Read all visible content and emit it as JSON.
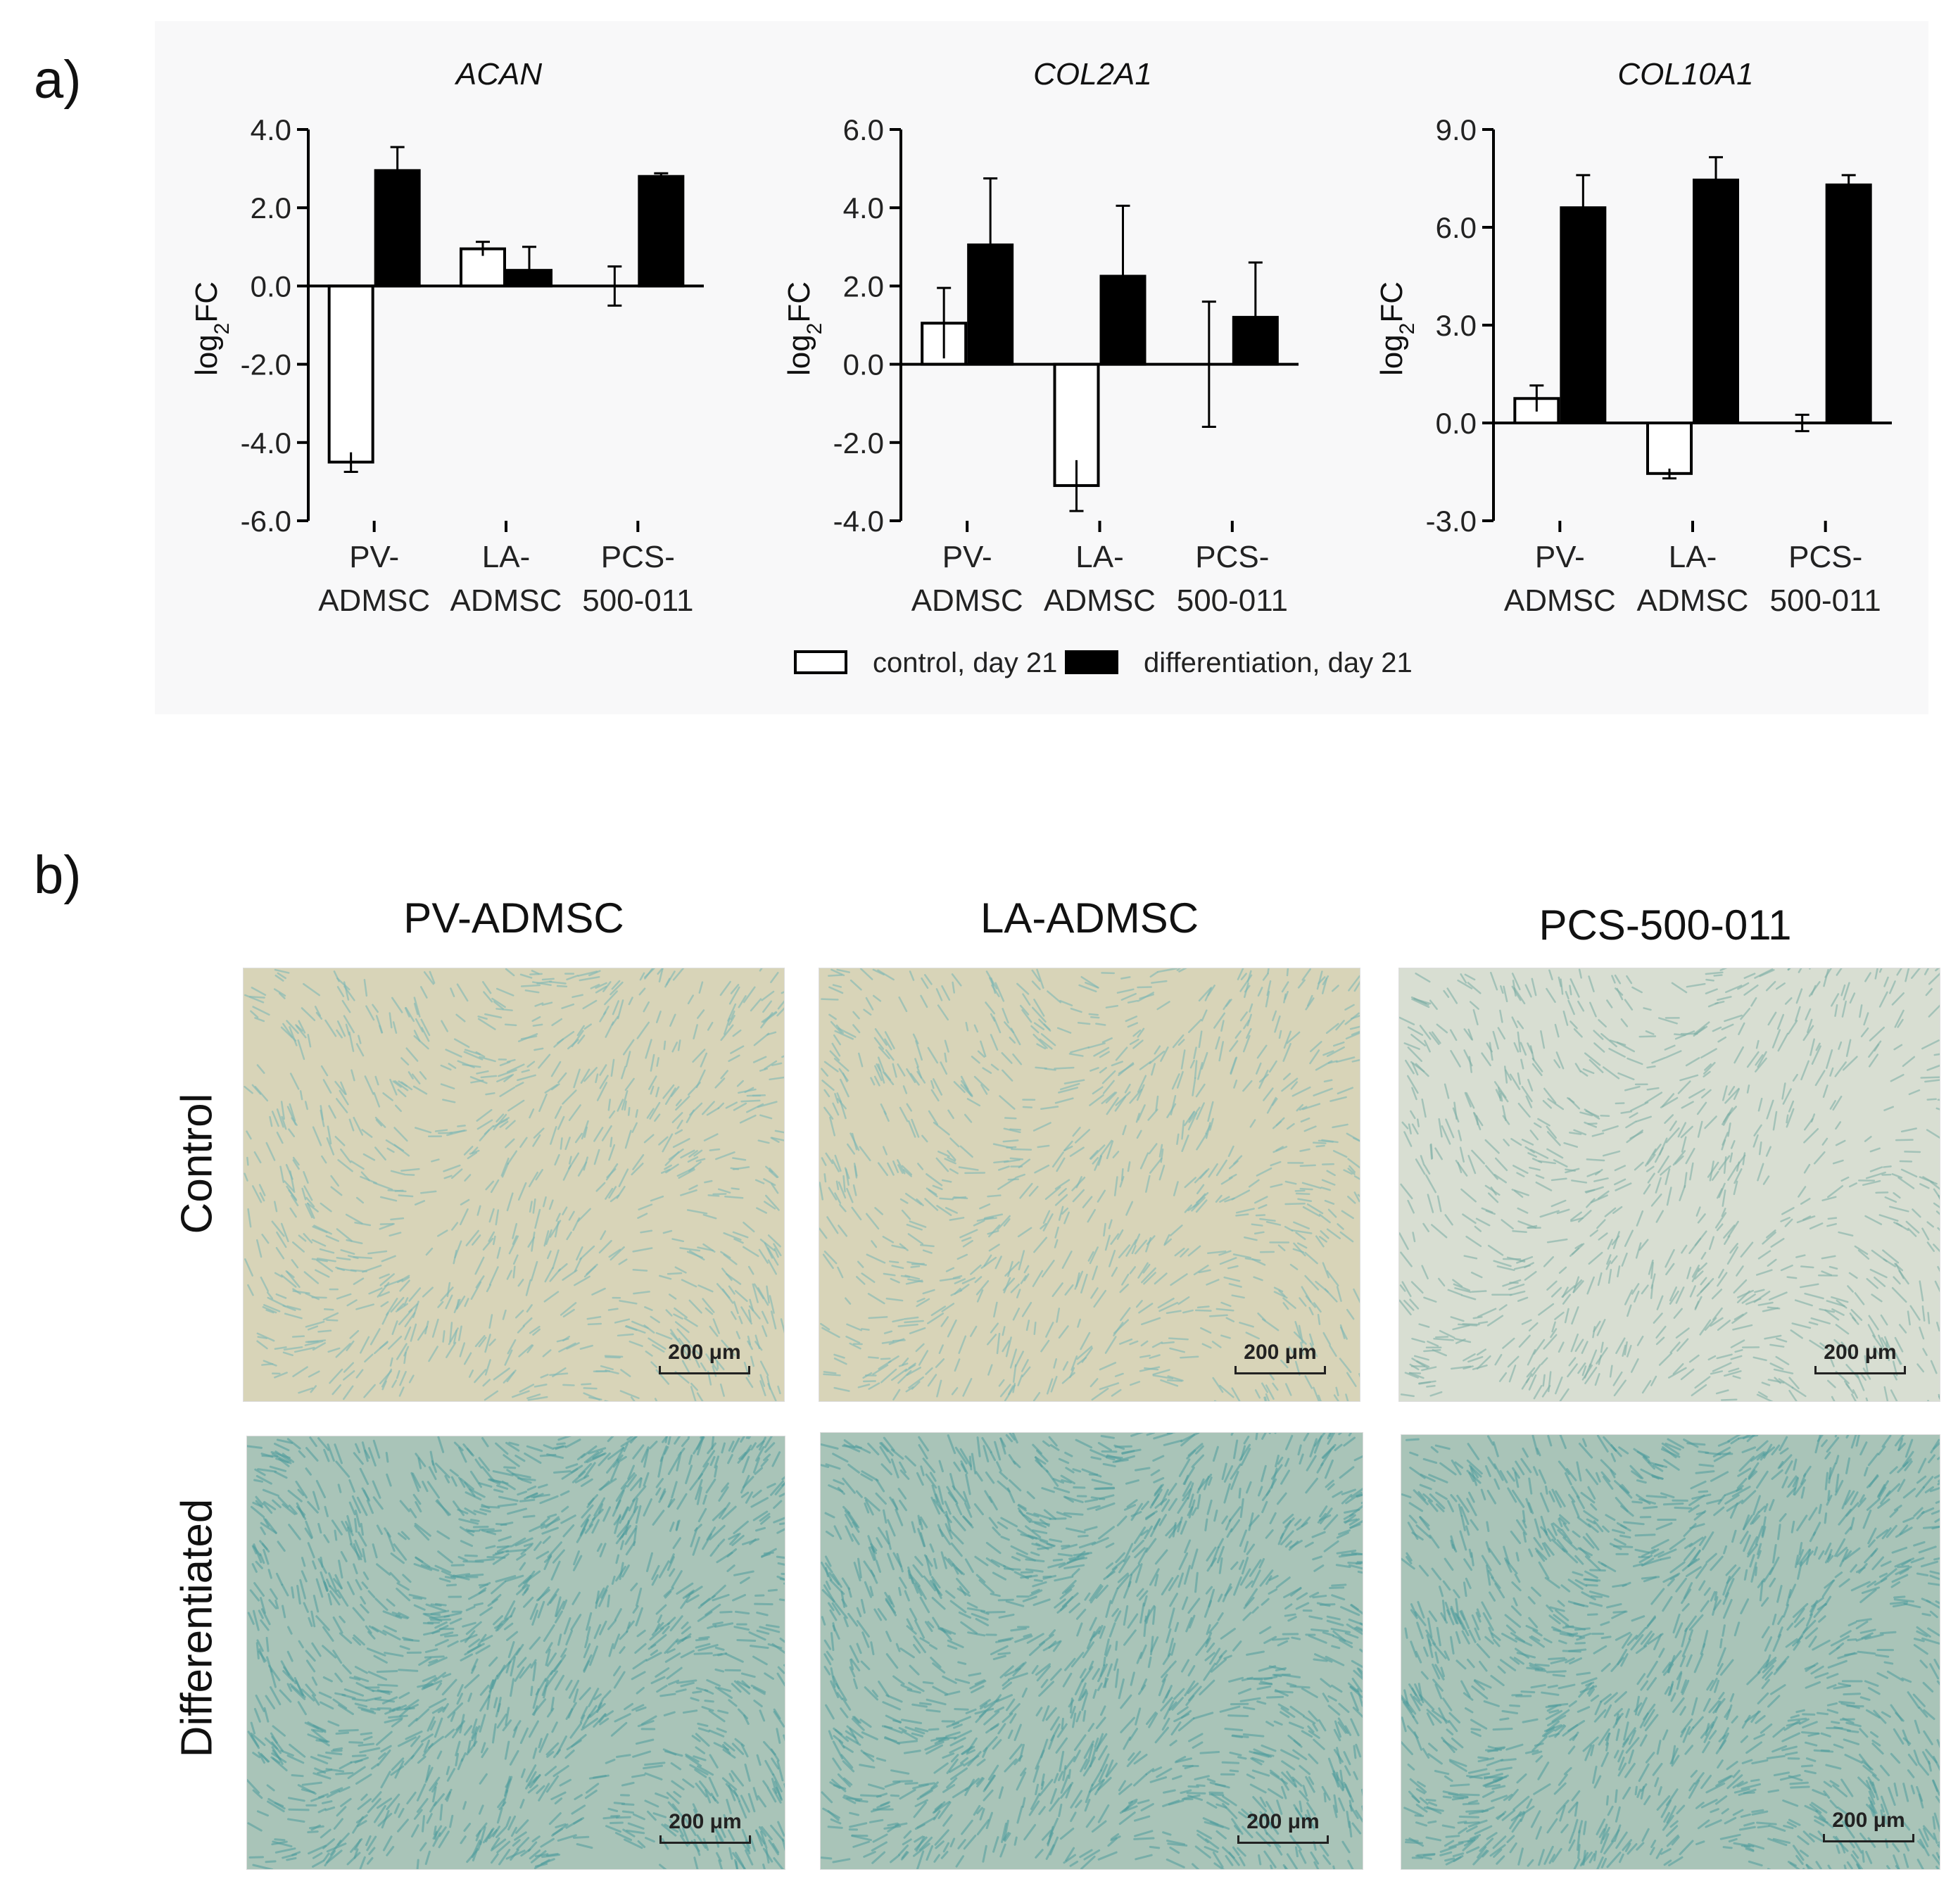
{
  "panel_a_label": "a)",
  "panel_b_label": "b)",
  "legend": [
    {
      "label": "control, day 21",
      "fill": "#ffffff"
    },
    {
      "label": "differentiation, day 21",
      "fill": "#000000"
    }
  ],
  "chart_data": [
    {
      "type": "bar",
      "title": "ACAN",
      "ylabel": "log2FC",
      "ylim": [
        -6.0,
        4.0
      ],
      "yticks": [
        "-6.0",
        "-4.0",
        "-2.0",
        "0.0",
        "2.0",
        "4.0"
      ],
      "categories": [
        [
          "PV-",
          "ADMSC"
        ],
        [
          "LA-",
          "ADMSC"
        ],
        [
          "PCS-",
          "500-011"
        ]
      ],
      "series": [
        {
          "name": "control, day 21",
          "values": [
            -4.5,
            0.95,
            0.0
          ],
          "errors": [
            0.25,
            0.18,
            0.5
          ]
        },
        {
          "name": "differentiation, day 21",
          "values": [
            2.95,
            0.4,
            2.8
          ],
          "errors": [
            0.6,
            0.6,
            0.08
          ]
        }
      ]
    },
    {
      "type": "bar",
      "title": "COL2A1",
      "ylabel": "log2FC",
      "ylim": [
        -4.0,
        6.0
      ],
      "yticks": [
        "-4.0",
        "-2.0",
        "0.0",
        "2.0",
        "4.0",
        "6.0"
      ],
      "categories": [
        [
          "PV-",
          "ADMSC"
        ],
        [
          "LA-",
          "ADMSC"
        ],
        [
          "PCS-",
          "500-011"
        ]
      ],
      "series": [
        {
          "name": "control, day 21",
          "values": [
            1.05,
            -3.1,
            0.0
          ],
          "errors": [
            0.9,
            0.65,
            1.6
          ]
        },
        {
          "name": "differentiation, day 21",
          "values": [
            3.05,
            2.25,
            1.2
          ],
          "errors": [
            1.7,
            1.8,
            1.4
          ]
        }
      ]
    },
    {
      "type": "bar",
      "title": "COL10A1",
      "ylabel": "log2FC",
      "ylim": [
        -3.0,
        9.0
      ],
      "yticks": [
        "-3.0",
        "0.0",
        "3.0",
        "6.0",
        "9.0"
      ],
      "categories": [
        [
          "PV-",
          "ADMSC"
        ],
        [
          "LA-",
          "ADMSC"
        ],
        [
          "PCS-",
          "500-011"
        ]
      ],
      "series": [
        {
          "name": "control, day 21",
          "values": [
            0.75,
            -1.55,
            0.0
          ],
          "errors": [
            0.4,
            0.15,
            0.25
          ]
        },
        {
          "name": "differentiation, day 21",
          "values": [
            6.6,
            7.45,
            7.3
          ],
          "errors": [
            1.0,
            0.7,
            0.3
          ]
        }
      ]
    }
  ],
  "micrographs": {
    "columns": [
      "PV-ADMSC",
      "LA-ADMSC",
      "PCS-500-011"
    ],
    "rows": [
      "Control",
      "Differentiated"
    ],
    "scale_label": "200 μm",
    "colors": {
      "control_base": "#d8d4b8",
      "control_stain": "#7fb8b4",
      "differentiated_base": "#a9c4b8",
      "differentiated_stain": "#4f9c9c",
      "pcs_control_light": "#e9f0ea"
    }
  }
}
